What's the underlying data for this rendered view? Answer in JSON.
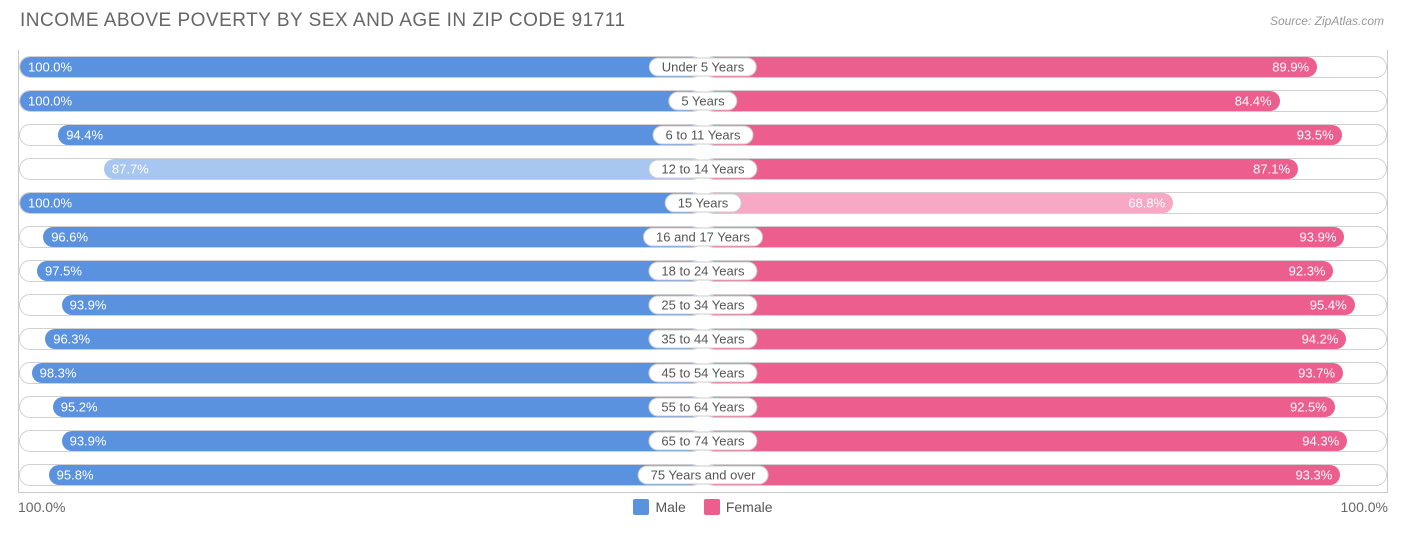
{
  "title": "INCOME ABOVE POVERTY BY SEX AND AGE IN ZIP CODE 91711",
  "source": "Source: ZipAtlas.com",
  "colors": {
    "male_solid": "#5b92e0",
    "male_light": "#a7c6f0",
    "female_solid": "#ec5e8e",
    "female_light": "#f6a8c4",
    "track_border": "#d0d0d0",
    "text": "#666666",
    "bg": "#ffffff"
  },
  "male_light_threshold": 90.0,
  "female_light_threshold": 70.0,
  "axis": {
    "left": "100.0%",
    "right": "100.0%"
  },
  "legend": {
    "male": "Male",
    "female": "Female"
  },
  "rows": [
    {
      "age": "Under 5 Years",
      "male": 100.0,
      "female": 89.9
    },
    {
      "age": "5 Years",
      "male": 100.0,
      "female": 84.4
    },
    {
      "age": "6 to 11 Years",
      "male": 94.4,
      "female": 93.5
    },
    {
      "age": "12 to 14 Years",
      "male": 87.7,
      "female": 87.1
    },
    {
      "age": "15 Years",
      "male": 100.0,
      "female": 68.8
    },
    {
      "age": "16 and 17 Years",
      "male": 96.6,
      "female": 93.9
    },
    {
      "age": "18 to 24 Years",
      "male": 97.5,
      "female": 92.3
    },
    {
      "age": "25 to 34 Years",
      "male": 93.9,
      "female": 95.4
    },
    {
      "age": "35 to 44 Years",
      "male": 96.3,
      "female": 94.2
    },
    {
      "age": "45 to 54 Years",
      "male": 98.3,
      "female": 93.7
    },
    {
      "age": "55 to 64 Years",
      "male": 95.2,
      "female": 92.5
    },
    {
      "age": "65 to 74 Years",
      "male": 93.9,
      "female": 94.3
    },
    {
      "age": "75 Years and over",
      "male": 95.8,
      "female": 93.3
    }
  ]
}
